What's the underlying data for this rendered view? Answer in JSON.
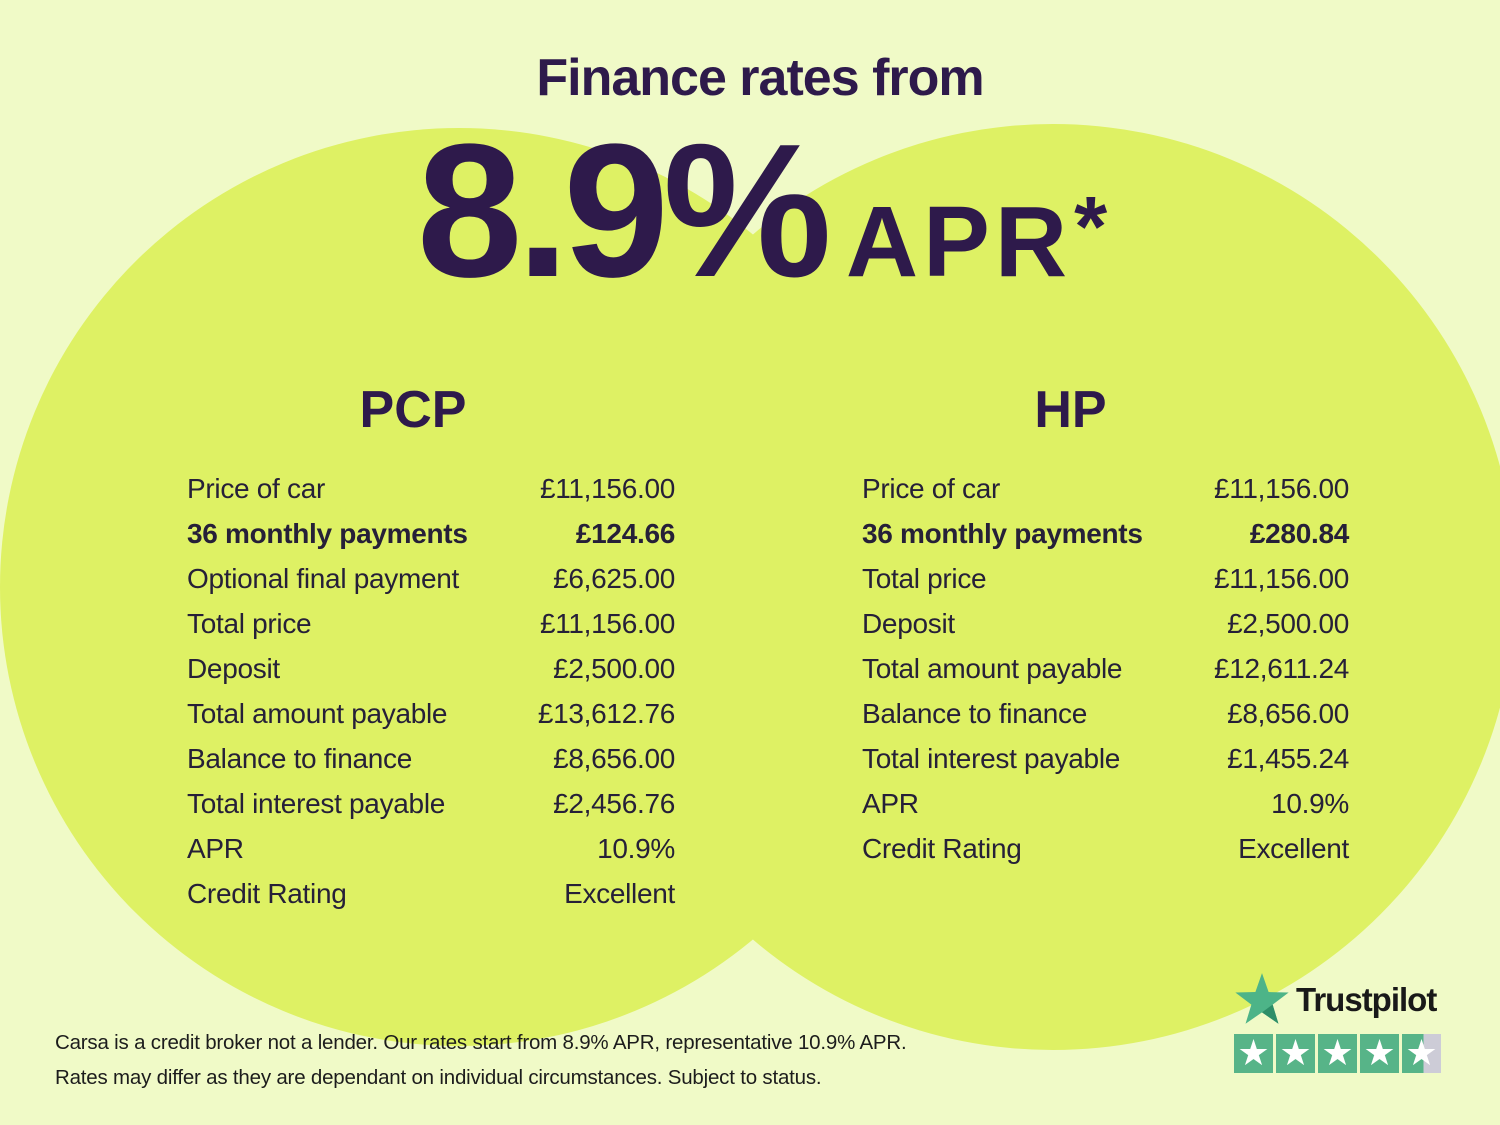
{
  "title": "Finance rates from",
  "headline": {
    "rate": "8.9%",
    "unit": "APR",
    "asterisk": "*"
  },
  "pcp": {
    "heading": "PCP",
    "rows": [
      {
        "label": "Price of car",
        "value": "£11,156.00",
        "bold": false
      },
      {
        "label": "36 monthly payments",
        "value": "£124.66",
        "bold": true
      },
      {
        "label": "Optional final payment",
        "value": "£6,625.00",
        "bold": false
      },
      {
        "label": "Total price",
        "value": "£11,156.00",
        "bold": false
      },
      {
        "label": "Deposit",
        "value": "£2,500.00",
        "bold": false
      },
      {
        "label": "Total amount payable",
        "value": "£13,612.76",
        "bold": false
      },
      {
        "label": "Balance to finance",
        "value": "£8,656.00",
        "bold": false
      },
      {
        "label": "Total interest payable",
        "value": "£2,456.76",
        "bold": false
      },
      {
        "label": "APR",
        "value": "10.9%",
        "bold": false
      },
      {
        "label": "Credit Rating",
        "value": "Excellent",
        "bold": false
      }
    ]
  },
  "hp": {
    "heading": "HP",
    "rows": [
      {
        "label": "Price of car",
        "value": "£11,156.00",
        "bold": false
      },
      {
        "label": "36 monthly payments",
        "value": "£280.84",
        "bold": true
      },
      {
        "label": "Total price",
        "value": "£11,156.00",
        "bold": false
      },
      {
        "label": "Deposit",
        "value": "£2,500.00",
        "bold": false
      },
      {
        "label": "Total amount payable",
        "value": "£12,611.24",
        "bold": false
      },
      {
        "label": "Balance to finance",
        "value": "£8,656.00",
        "bold": false
      },
      {
        "label": "Total interest payable",
        "value": "£1,455.24",
        "bold": false
      },
      {
        "label": "APR",
        "value": "10.9%",
        "bold": false
      },
      {
        "label": "Credit Rating",
        "value": "Excellent",
        "bold": false
      }
    ]
  },
  "disclaimer": {
    "line1": "Carsa is a credit broker not a lender. Our rates start from 8.9% APR, representative 10.9% APR.",
    "line2": "Rates may differ as they are dependant on individual circumstances. Subject to status."
  },
  "trustpilot": {
    "brand": "Trustpilot",
    "rating_out_of_5": 4.5,
    "star_fills": [
      1,
      1,
      1,
      1,
      0.55
    ],
    "star_glyph": "★"
  },
  "colors": {
    "background": "#f0fac7",
    "circle_lime": "#def164",
    "heading_purple": "#2e1a4b",
    "table_text": "#262038",
    "trustpilot_star_green": "#4db488",
    "trustpilot_star_shadow": "#2e8e68",
    "star_box_green": "#57b488",
    "star_box_grey": "#cdccd7",
    "wordmark_black": "#191919",
    "disclaimer_text": "#1c1c1c"
  }
}
